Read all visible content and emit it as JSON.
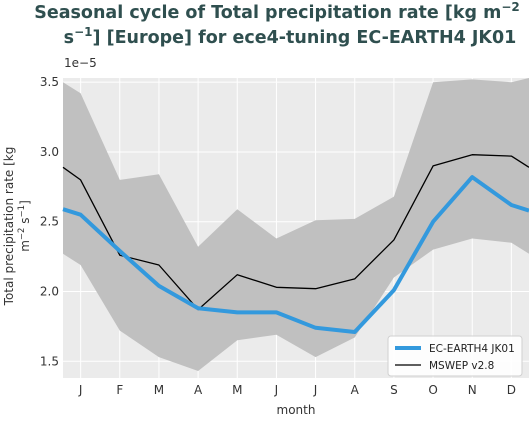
{
  "chart_data": {
    "type": "line",
    "title_line1": "Seasonal cycle of Total precipitation rate [kg m",
    "title_line1_sup": "−2",
    "title_line2_pre": "s",
    "title_line2_sup": "−1",
    "title_line2_post": "] [Europe] for ece4-tuning EC-EARTH4 JK01",
    "xlabel": "month",
    "ylabel_line1": "Total precipitation rate [kg",
    "ylabel_line2_pre": "m",
    "ylabel_line2_sup1": "−2",
    "ylabel_line2_mid": " s",
    "ylabel_line2_sup2": "−1",
    "ylabel_line2_post": "]",
    "y_multiplier": "1e−5",
    "x_ticks": [
      "J",
      "F",
      "M",
      "A",
      "M",
      "J",
      "J",
      "A",
      "S",
      "O",
      "N",
      "D"
    ],
    "x_tick_values": [
      1,
      2,
      3,
      4,
      5,
      6,
      7,
      8,
      9,
      10,
      11,
      12
    ],
    "xlim": [
      0.55,
      12.45
    ],
    "ylim": [
      1.38,
      3.53
    ],
    "y_ticks": [
      1.5,
      2.0,
      2.5,
      3.0,
      3.5
    ],
    "y_tick_labels": [
      "1.5",
      "2.0",
      "2.5",
      "3.0",
      "3.5"
    ],
    "grid": true,
    "legend_position": "bottom-right",
    "band": {
      "x": [
        0.55,
        1,
        2,
        3,
        4,
        5,
        6,
        7,
        8,
        9,
        10,
        11,
        12,
        12.45
      ],
      "upper": [
        3.5,
        3.42,
        2.8,
        2.84,
        2.32,
        2.59,
        2.38,
        2.51,
        2.52,
        2.68,
        3.5,
        3.52,
        3.5,
        3.53
      ],
      "lower": [
        2.27,
        2.19,
        1.72,
        1.53,
        1.43,
        1.65,
        1.69,
        1.53,
        1.67,
        2.1,
        2.3,
        2.38,
        2.35,
        2.27
      ],
      "color": "#c0c0c0"
    },
    "series": [
      {
        "name": "EC-EARTH4 JK01",
        "color": "#3399dd",
        "width": 4,
        "x": [
          0.55,
          1,
          2,
          3,
          4,
          5,
          6,
          7,
          8,
          9,
          10,
          11,
          12,
          12.45
        ],
        "values": [
          2.59,
          2.55,
          2.29,
          2.04,
          1.88,
          1.85,
          1.85,
          1.74,
          1.71,
          2.01,
          2.5,
          2.82,
          2.62,
          2.58
        ]
      },
      {
        "name": "MSWEP v2.8",
        "color": "#000000",
        "width": 1.3,
        "x": [
          0.55,
          1,
          2,
          3,
          4,
          5,
          6,
          7,
          8,
          9,
          10,
          11,
          12,
          12.45
        ],
        "values": [
          2.89,
          2.8,
          2.26,
          2.19,
          1.87,
          2.12,
          2.03,
          2.02,
          2.09,
          2.37,
          2.9,
          2.98,
          2.97,
          2.89
        ]
      }
    ]
  }
}
